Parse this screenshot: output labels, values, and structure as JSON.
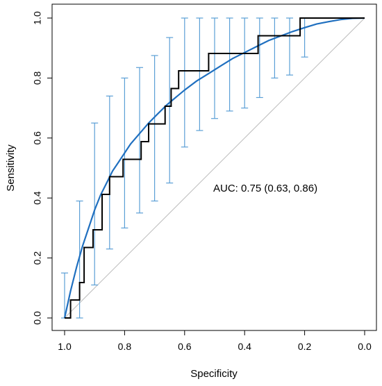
{
  "chart_data": {
    "type": "line",
    "title": "",
    "xlabel": "Specificity",
    "ylabel": "Sensitivity",
    "xlim": [
      1.0,
      0.0
    ],
    "ylim": [
      0.0,
      1.0
    ],
    "x_reversed": true,
    "grid": false,
    "x_ticks": [
      "1.0",
      "0.8",
      "0.6",
      "0.4",
      "0.2",
      "0.0"
    ],
    "y_ticks": [
      "0.0",
      "0.2",
      "0.4",
      "0.6",
      "0.8",
      "1.0"
    ],
    "annotation": "AUC: 0.75 (0.63, 0.86)",
    "colors": {
      "empirical": "#000000",
      "smoothed": "#1f6fbf",
      "ci_bars": "#5b9fd6",
      "diagonal": "#bdbdbd",
      "axis": "#000000"
    },
    "series": [
      {
        "x": [
          1.0,
          0.98,
          0.98,
          0.95,
          0.95,
          0.935,
          0.935,
          0.905,
          0.905,
          0.875,
          0.875,
          0.85,
          0.85,
          0.805,
          0.805,
          0.745,
          0.745,
          0.72,
          0.72,
          0.665,
          0.665,
          0.645,
          0.645,
          0.62,
          0.62,
          0.52,
          0.52,
          0.355,
          0.355,
          0.215,
          0.215,
          0.0
        ],
        "y": [
          0.0,
          0.0,
          0.06,
          0.06,
          0.118,
          0.118,
          0.235,
          0.235,
          0.294,
          0.294,
          0.412,
          0.412,
          0.471,
          0.471,
          0.529,
          0.529,
          0.588,
          0.588,
          0.647,
          0.647,
          0.706,
          0.706,
          0.765,
          0.765,
          0.824,
          0.824,
          0.882,
          0.882,
          0.941,
          0.941,
          1.0,
          1.0
        ]
      },
      {
        "x": [
          1.0,
          0.98,
          0.96,
          0.94,
          0.92,
          0.9,
          0.88,
          0.86,
          0.84,
          0.82,
          0.8,
          0.78,
          0.75,
          0.72,
          0.69,
          0.66,
          0.63,
          0.6,
          0.56,
          0.52,
          0.48,
          0.44,
          0.4,
          0.36,
          0.32,
          0.28,
          0.24,
          0.2,
          0.16,
          0.12,
          0.08,
          0.04,
          0.0
        ],
        "y": [
          0.0,
          0.09,
          0.17,
          0.24,
          0.3,
          0.36,
          0.41,
          0.45,
          0.49,
          0.52,
          0.55,
          0.58,
          0.615,
          0.65,
          0.68,
          0.71,
          0.735,
          0.76,
          0.79,
          0.815,
          0.84,
          0.865,
          0.885,
          0.905,
          0.925,
          0.94,
          0.955,
          0.968,
          0.98,
          0.988,
          0.995,
          0.999,
          1.0
        ]
      }
    ],
    "ci_bars": [
      {
        "specificity": 1.0,
        "low": 0.0,
        "high": 0.15
      },
      {
        "specificity": 0.95,
        "low": 0.0,
        "high": 0.39
      },
      {
        "specificity": 0.9,
        "low": 0.11,
        "high": 0.65
      },
      {
        "specificity": 0.85,
        "low": 0.23,
        "high": 0.74
      },
      {
        "specificity": 0.8,
        "low": 0.3,
        "high": 0.8
      },
      {
        "specificity": 0.75,
        "low": 0.35,
        "high": 0.835
      },
      {
        "specificity": 0.7,
        "low": 0.39,
        "high": 0.875
      },
      {
        "specificity": 0.65,
        "low": 0.45,
        "high": 0.935
      },
      {
        "specificity": 0.6,
        "low": 0.57,
        "high": 1.0
      },
      {
        "specificity": 0.55,
        "low": 0.625,
        "high": 1.0
      },
      {
        "specificity": 0.5,
        "low": 0.665,
        "high": 1.0
      },
      {
        "specificity": 0.45,
        "low": 0.69,
        "high": 1.0
      },
      {
        "specificity": 0.4,
        "low": 0.7,
        "high": 1.0
      },
      {
        "specificity": 0.35,
        "low": 0.735,
        "high": 1.0
      },
      {
        "specificity": 0.3,
        "low": 0.8,
        "high": 1.0
      },
      {
        "specificity": 0.25,
        "low": 0.81,
        "high": 1.0
      },
      {
        "specificity": 0.2,
        "low": 0.87,
        "high": 1.0
      }
    ]
  }
}
